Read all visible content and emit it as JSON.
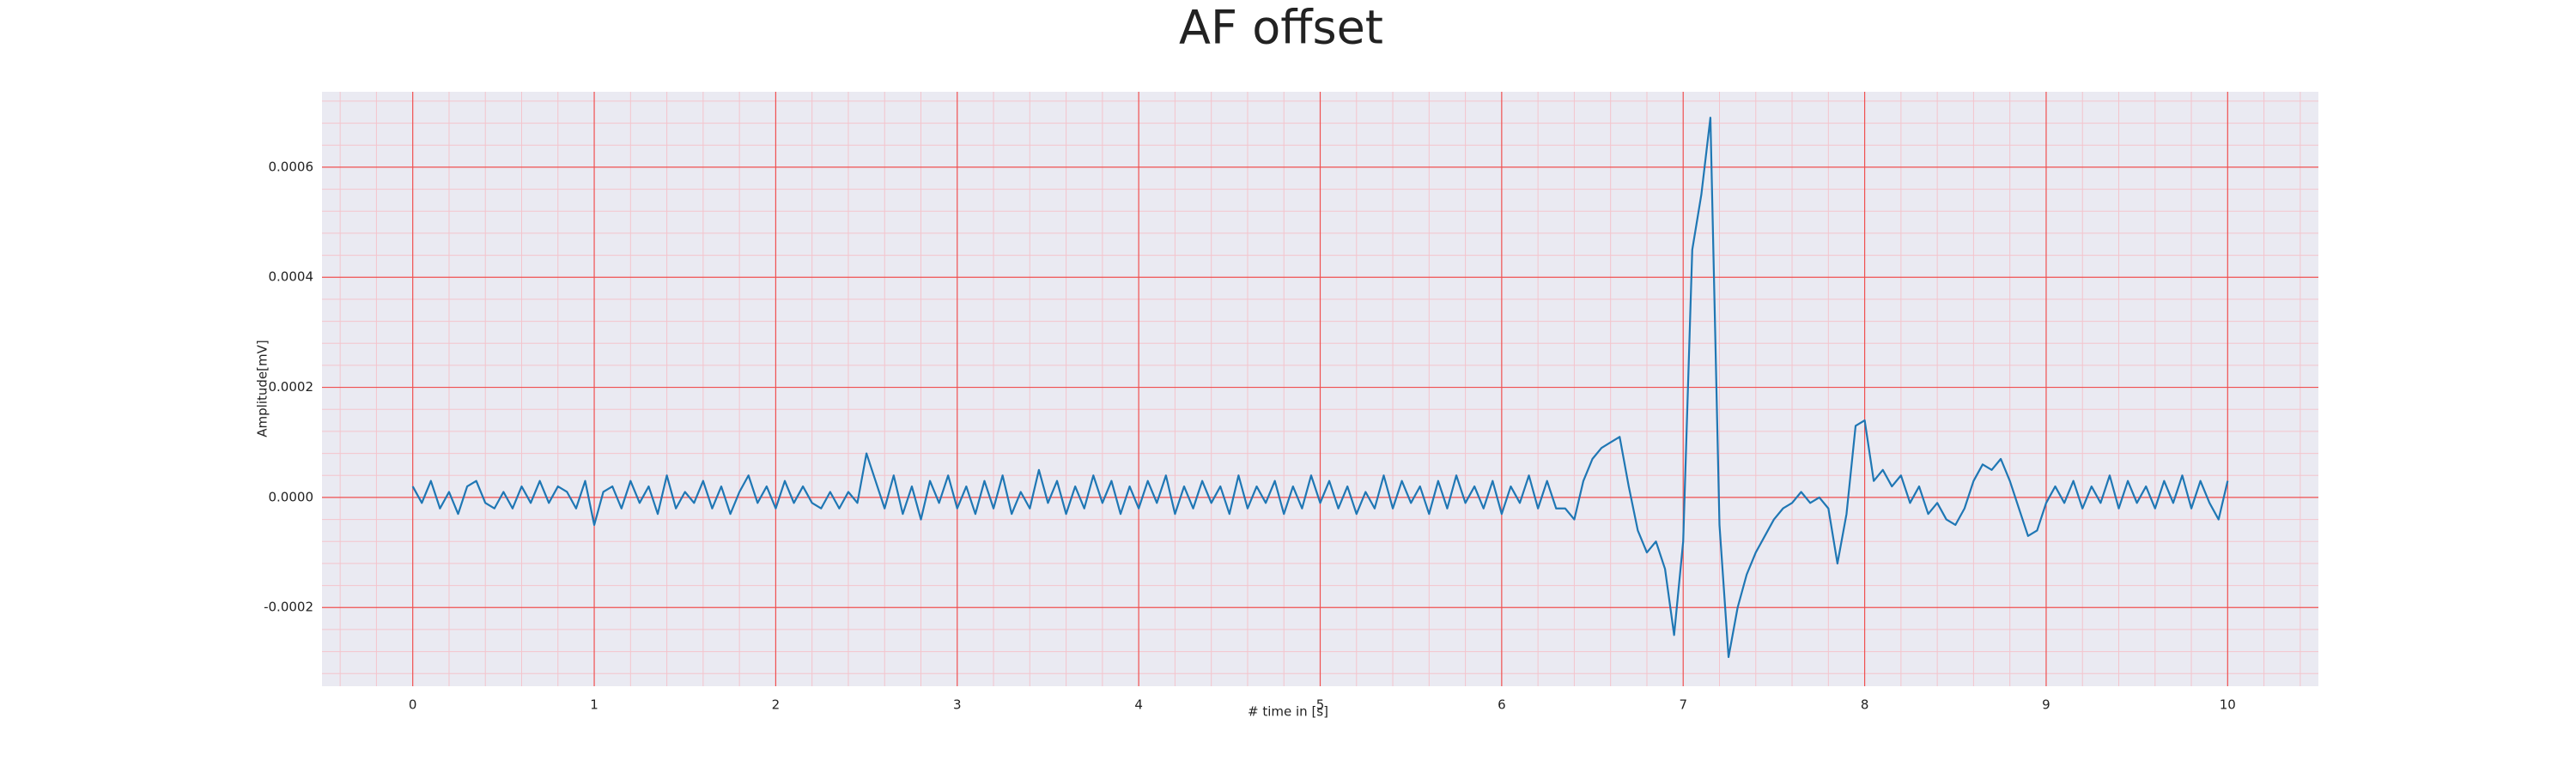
{
  "chart_data": {
    "type": "line",
    "title": "AF offset",
    "x_label": "# time in [s]",
    "y_label": "Amplitude[mV]",
    "color": "#1f77b4",
    "background": "#eaeaf2",
    "grid": true,
    "grid_color": "#f05050",
    "minor_grid": true,
    "minor_grid_color": "#f4c4cc",
    "xlim": [
      -0.5,
      10.5
    ],
    "ylim": [
      -0.000343,
      0.000737
    ],
    "xticks": [
      0,
      1,
      2,
      3,
      4,
      5,
      6,
      7,
      8,
      9,
      10
    ],
    "yticks": [
      -0.0002,
      {
        "value": 0,
        "label": "0.0000"
      },
      0.0002,
      0.0004,
      0.0006
    ],
    "x": [
      0,
      0.05,
      0.1,
      0.15,
      0.2,
      0.25,
      0.3,
      0.35,
      0.4,
      0.45,
      0.5,
      0.55,
      0.6,
      0.65,
      0.7,
      0.75,
      0.8,
      0.85,
      0.9,
      0.95,
      1,
      1.05,
      1.1,
      1.15,
      1.2,
      1.25,
      1.3,
      1.35,
      1.4,
      1.45,
      1.5,
      1.55,
      1.6,
      1.65,
      1.7,
      1.75,
      1.8,
      1.85,
      1.9,
      1.95,
      2,
      2.05,
      2.1,
      2.15,
      2.2,
      2.25,
      2.3,
      2.35,
      2.4,
      2.45,
      2.5,
      2.55,
      2.6,
      2.65,
      2.7,
      2.75,
      2.8,
      2.85,
      2.9,
      2.95,
      3,
      3.05,
      3.1,
      3.15,
      3.2,
      3.25,
      3.3,
      3.35,
      3.4,
      3.45,
      3.5,
      3.55,
      3.6,
      3.65,
      3.7,
      3.75,
      3.8,
      3.85,
      3.9,
      3.95,
      4,
      4.05,
      4.1,
      4.15,
      4.2,
      4.25,
      4.3,
      4.35,
      4.4,
      4.45,
      4.5,
      4.55,
      4.6,
      4.65,
      4.7,
      4.75,
      4.8,
      4.85,
      4.9,
      4.95,
      5,
      5.05,
      5.1,
      5.15,
      5.2,
      5.25,
      5.3,
      5.35,
      5.4,
      5.45,
      5.5,
      5.55,
      5.6,
      5.65,
      5.7,
      5.75,
      5.8,
      5.85,
      5.9,
      5.95,
      6,
      6.05,
      6.1,
      6.15,
      6.2,
      6.25,
      6.3,
      6.35,
      6.4,
      6.45,
      6.5,
      6.55,
      6.6,
      6.65,
      6.7,
      6.75,
      6.8,
      6.85,
      6.9,
      6.95,
      7,
      7.05,
      7.1,
      7.15,
      7.2,
      7.25,
      7.3,
      7.35,
      7.4,
      7.45,
      7.5,
      7.55,
      7.6,
      7.65,
      7.7,
      7.75,
      7.8,
      7.85,
      7.9,
      7.95,
      8,
      8.05,
      8.1,
      8.15,
      8.2,
      8.25,
      8.3,
      8.35,
      8.4,
      8.45,
      8.5,
      8.55,
      8.6,
      8.65,
      8.7,
      8.75,
      8.8,
      8.85,
      8.9,
      8.95,
      9,
      9.05,
      9.1,
      9.15,
      9.2,
      9.25,
      9.3,
      9.35,
      9.4,
      9.45,
      9.5,
      9.55,
      9.6,
      9.65,
      9.7,
      9.75,
      9.8,
      9.85,
      9.9,
      9.95,
      10
    ],
    "values": [
      2e-05,
      -1e-05,
      3e-05,
      -2e-05,
      1e-05,
      -3e-05,
      2e-05,
      3e-05,
      -1e-05,
      -2e-05,
      1e-05,
      -2e-05,
      2e-05,
      -1e-05,
      3e-05,
      -1e-05,
      2e-05,
      1e-05,
      -2e-05,
      3e-05,
      -5e-05,
      1e-05,
      2e-05,
      -2e-05,
      3e-05,
      -1e-05,
      2e-05,
      -3e-05,
      4e-05,
      -2e-05,
      1e-05,
      -1e-05,
      3e-05,
      -2e-05,
      2e-05,
      -3e-05,
      1e-05,
      4e-05,
      -1e-05,
      2e-05,
      -2e-05,
      3e-05,
      -1e-05,
      2e-05,
      -1e-05,
      -2e-05,
      1e-05,
      -2e-05,
      1e-05,
      -1e-05,
      8e-05,
      3e-05,
      -2e-05,
      4e-05,
      -3e-05,
      2e-05,
      -4e-05,
      3e-05,
      -1e-05,
      4e-05,
      -2e-05,
      2e-05,
      -3e-05,
      3e-05,
      -2e-05,
      4e-05,
      -3e-05,
      1e-05,
      -2e-05,
      5e-05,
      -1e-05,
      3e-05,
      -3e-05,
      2e-05,
      -2e-05,
      4e-05,
      -1e-05,
      3e-05,
      -3e-05,
      2e-05,
      -2e-05,
      3e-05,
      -1e-05,
      4e-05,
      -3e-05,
      2e-05,
      -2e-05,
      3e-05,
      -1e-05,
      2e-05,
      -3e-05,
      4e-05,
      -2e-05,
      2e-05,
      -1e-05,
      3e-05,
      -3e-05,
      2e-05,
      -2e-05,
      4e-05,
      -1e-05,
      3e-05,
      -2e-05,
      2e-05,
      -3e-05,
      1e-05,
      -2e-05,
      4e-05,
      -2e-05,
      3e-05,
      -1e-05,
      2e-05,
      -3e-05,
      3e-05,
      -2e-05,
      4e-05,
      -1e-05,
      2e-05,
      -2e-05,
      3e-05,
      -3e-05,
      2e-05,
      -1e-05,
      4e-05,
      -2e-05,
      3e-05,
      -2e-05,
      -2e-05,
      -4e-05,
      3e-05,
      7e-05,
      9e-05,
      0.0001,
      0.00011,
      2e-05,
      -6e-05,
      -0.0001,
      -8e-05,
      -0.00013,
      -0.00025,
      -8e-05,
      0.00045,
      0.00055,
      0.00069,
      -5e-05,
      -0.00029,
      -0.0002,
      -0.00014,
      -0.0001,
      -7e-05,
      -4e-05,
      -2e-05,
      -1e-05,
      1e-05,
      -1e-05,
      0,
      -2e-05,
      -0.00012,
      -3e-05,
      0.00013,
      0.00014,
      3e-05,
      5e-05,
      2e-05,
      4e-05,
      -1e-05,
      2e-05,
      -3e-05,
      -1e-05,
      -4e-05,
      -5e-05,
      -2e-05,
      3e-05,
      6e-05,
      5e-05,
      7e-05,
      3e-05,
      -2e-05,
      -7e-05,
      -6e-05,
      -1e-05,
      2e-05,
      -1e-05,
      3e-05,
      -2e-05,
      2e-05,
      -1e-05,
      4e-05,
      -2e-05,
      3e-05,
      -1e-05,
      2e-05,
      -2e-05,
      3e-05,
      -1e-05,
      4e-05,
      -2e-05,
      3e-05,
      -1e-05,
      -4e-05,
      3e-05
    ]
  }
}
